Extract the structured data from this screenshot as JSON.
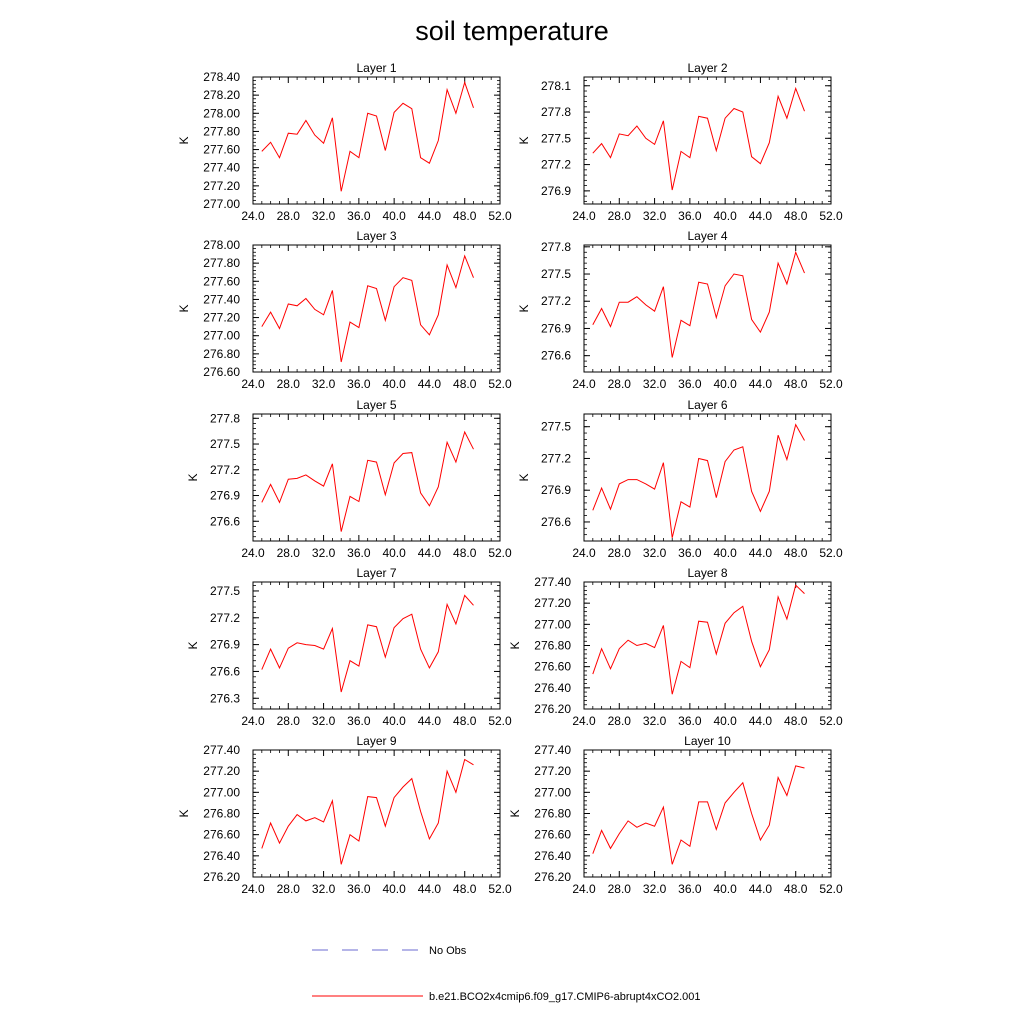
{
  "title": "soil temperature",
  "chart_data": {
    "type": "line",
    "title": "soil temperature",
    "x": [
      25.0,
      26.0,
      27.0,
      28.0,
      29.0,
      30.0,
      31.0,
      32.0,
      33.0,
      34.0,
      35.0,
      36.0,
      37.0,
      38.0,
      39.0,
      40.0,
      41.0,
      42.0,
      43.0,
      44.0,
      45.0,
      46.0,
      47.0,
      48.0,
      49.0
    ],
    "x_ticks": [
      "24.0",
      "28.0",
      "32.0",
      "36.0",
      "40.0",
      "44.0",
      "48.0",
      "52.0"
    ],
    "xlim": [
      24.0,
      52.0
    ],
    "grid": false,
    "legend": {
      "placement": "bottom",
      "entries": [
        {
          "label": "No Obs",
          "color": "#6b6bd1",
          "style": "dashed"
        },
        {
          "label": "b.e21.BCO2x4cmip6.f09_g17.CMIP6-abrupt4xCO2.001",
          "color": "#ff0000",
          "style": "solid"
        }
      ]
    },
    "panels": [
      {
        "title": "Layer 1",
        "ylabel": "K",
        "ylim": [
          277.0,
          278.4
        ],
        "y_ticks": [
          "277.00",
          "277.20",
          "277.40",
          "277.60",
          "277.80",
          "278.00",
          "278.20",
          "278.40"
        ],
        "series": [
          {
            "color": "#ff0000",
            "values": [
              277.58,
              277.68,
              277.51,
              277.78,
              277.77,
              277.92,
              277.76,
              277.67,
              277.95,
              277.14,
              277.58,
              277.51,
              278.0,
              277.97,
              277.59,
              278.01,
              278.11,
              278.05,
              277.51,
              277.45,
              277.7,
              278.26,
              278.0,
              278.34,
              278.06
            ]
          }
        ]
      },
      {
        "title": "Layer 2",
        "ylabel": "K",
        "ylim": [
          276.75,
          278.2
        ],
        "y_ticks": [
          "276.9",
          "277.2",
          "277.5",
          "277.8",
          "278.1"
        ],
        "series": [
          {
            "color": "#ff0000",
            "values": [
              277.33,
              277.44,
              277.28,
              277.55,
              277.53,
              277.64,
              277.5,
              277.43,
              277.7,
              276.91,
              277.35,
              277.28,
              277.75,
              277.73,
              277.36,
              277.73,
              277.84,
              277.8,
              277.29,
              277.21,
              277.45,
              277.98,
              277.73,
              278.07,
              277.81
            ]
          }
        ]
      },
      {
        "title": "Layer 3",
        "ylabel": "K",
        "ylim": [
          276.6,
          278.0
        ],
        "y_ticks": [
          "276.60",
          "276.80",
          "277.00",
          "277.20",
          "277.40",
          "277.60",
          "277.80",
          "278.00"
        ],
        "series": [
          {
            "color": "#ff0000",
            "values": [
              277.1,
              277.26,
              277.08,
              277.35,
              277.33,
              277.41,
              277.29,
              277.23,
              277.5,
              276.71,
              277.15,
              277.09,
              277.55,
              277.52,
              277.17,
              277.54,
              277.64,
              277.61,
              277.12,
              277.01,
              277.23,
              277.78,
              277.53,
              277.88,
              277.64
            ]
          }
        ]
      },
      {
        "title": "Layer 4",
        "ylabel": "K",
        "ylim": [
          276.42,
          277.82
        ],
        "y_ticks": [
          "276.6",
          "276.9",
          "277.2",
          "277.5",
          "277.8"
        ],
        "series": [
          {
            "color": "#ff0000",
            "values": [
              276.94,
              277.12,
              276.92,
              277.19,
              277.19,
              277.25,
              277.16,
              277.09,
              277.36,
              276.58,
              276.99,
              276.93,
              277.41,
              277.39,
              277.02,
              277.37,
              277.5,
              277.48,
              277.0,
              276.86,
              277.08,
              277.62,
              277.39,
              277.74,
              277.51
            ]
          }
        ]
      },
      {
        "title": "Layer 5",
        "ylabel": "K",
        "ylim": [
          276.37,
          277.85
        ],
        "y_ticks": [
          "276.6",
          "276.9",
          "277.2",
          "277.5",
          "277.8"
        ],
        "series": [
          {
            "color": "#ff0000",
            "values": [
              276.82,
              277.03,
              276.82,
              277.09,
              277.1,
              277.14,
              277.07,
              277.01,
              277.27,
              276.48,
              276.89,
              276.83,
              277.31,
              277.29,
              276.91,
              277.28,
              277.39,
              277.4,
              276.93,
              276.78,
              277.0,
              277.52,
              277.29,
              277.64,
              277.44
            ]
          }
        ]
      },
      {
        "title": "Layer 6",
        "ylabel": "K",
        "ylim": [
          276.42,
          277.62
        ],
        "y_ticks": [
          "276.6",
          "276.9",
          "277.2",
          "277.5"
        ],
        "series": [
          {
            "color": "#ff0000",
            "values": [
              276.71,
              276.92,
              276.72,
              276.96,
              277.0,
              277.0,
              276.96,
              276.91,
              277.16,
              276.45,
              276.79,
              276.74,
              277.2,
              277.18,
              276.83,
              277.17,
              277.28,
              277.31,
              276.89,
              276.7,
              276.89,
              277.42,
              277.19,
              277.52,
              277.37
            ]
          }
        ]
      },
      {
        "title": "Layer 7",
        "ylabel": "K",
        "ylim": [
          276.18,
          277.6
        ],
        "y_ticks": [
          "276.3",
          "276.6",
          "276.9",
          "277.2",
          "277.5"
        ],
        "series": [
          {
            "color": "#ff0000",
            "values": [
              276.62,
              276.85,
              276.64,
              276.86,
              276.92,
              276.9,
              276.89,
              276.85,
              277.08,
              276.37,
              276.72,
              276.66,
              277.12,
              277.1,
              276.76,
              277.09,
              277.19,
              277.24,
              276.85,
              276.64,
              276.82,
              277.35,
              277.13,
              277.45,
              277.34
            ]
          }
        ]
      },
      {
        "title": "Layer 8",
        "ylabel": "K",
        "ylim": [
          276.2,
          277.4
        ],
        "y_ticks": [
          "276.20",
          "276.40",
          "276.60",
          "276.80",
          "277.00",
          "277.20",
          "277.40"
        ],
        "series": [
          {
            "color": "#ff0000",
            "values": [
              276.53,
              276.77,
              276.58,
              276.77,
              276.85,
              276.8,
              276.82,
              276.78,
              276.99,
              276.34,
              276.65,
              276.59,
              277.03,
              277.02,
              276.72,
              277.01,
              277.11,
              277.17,
              276.84,
              276.6,
              276.76,
              277.26,
              277.05,
              277.37,
              277.29
            ]
          }
        ]
      },
      {
        "title": "Layer 9",
        "ylabel": "K",
        "ylim": [
          276.2,
          277.4
        ],
        "y_ticks": [
          "276.20",
          "276.40",
          "276.60",
          "276.80",
          "277.00",
          "277.20",
          "277.40"
        ],
        "series": [
          {
            "color": "#ff0000",
            "values": [
              276.47,
              276.71,
              276.52,
              276.68,
              276.79,
              276.73,
              276.76,
              276.72,
              276.92,
              276.32,
              276.6,
              276.54,
              276.96,
              276.95,
              276.68,
              276.95,
              277.05,
              277.13,
              276.82,
              276.56,
              276.71,
              277.2,
              277.0,
              277.31,
              277.26
            ]
          }
        ]
      },
      {
        "title": "Layer 10",
        "ylabel": "K",
        "ylim": [
          276.2,
          277.4
        ],
        "y_ticks": [
          "276.20",
          "276.40",
          "276.60",
          "276.80",
          "277.00",
          "277.20",
          "277.40"
        ],
        "series": [
          {
            "color": "#ff0000",
            "values": [
              276.42,
              276.64,
              276.47,
              276.61,
              276.73,
              276.67,
              276.71,
              276.68,
              276.86,
              276.32,
              276.55,
              276.49,
              276.91,
              276.91,
              276.65,
              276.9,
              277.0,
              277.09,
              276.8,
              276.55,
              276.69,
              277.14,
              276.97,
              277.25,
              277.23
            ]
          }
        ]
      }
    ]
  }
}
